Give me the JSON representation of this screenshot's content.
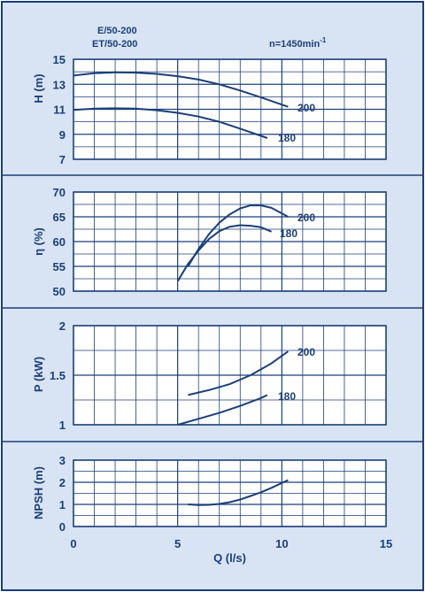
{
  "header": {
    "model_line1": "E/50-200",
    "model_line2": "ET/50-200",
    "speed": "n=1450min",
    "speed_exp": "-1"
  },
  "colors": {
    "background": "#d8e4f3",
    "frame": "#1b3f78",
    "grid": "#1b3f78",
    "curve": "#1b3f78",
    "text": "#1b3f78"
  },
  "chart_data": [
    {
      "type": "line",
      "ylabel": "H (m)",
      "xlim": [
        0,
        15
      ],
      "ylim": [
        7,
        15
      ],
      "yticks": [
        "7",
        "9",
        "11",
        "13",
        "15"
      ],
      "series": [
        {
          "name": "200",
          "x": [
            0,
            1,
            2,
            3,
            4,
            5,
            6,
            7,
            8,
            9,
            10.3
          ],
          "y": [
            13.7,
            13.88,
            13.95,
            13.93,
            13.83,
            13.65,
            13.38,
            13.0,
            12.5,
            11.95,
            11.2
          ]
        },
        {
          "name": "180",
          "x": [
            0,
            1,
            2,
            3,
            4,
            5,
            6,
            7,
            8,
            9.3
          ],
          "y": [
            10.95,
            11.05,
            11.08,
            11.05,
            10.92,
            10.72,
            10.42,
            10.0,
            9.45,
            8.7
          ]
        }
      ]
    },
    {
      "type": "line",
      "ylabel": "η (%)",
      "xlim": [
        0,
        15
      ],
      "ylim": [
        50,
        70
      ],
      "yticks": [
        "50",
        "55",
        "60",
        "65",
        "70"
      ],
      "series": [
        {
          "name": "200",
          "x": [
            5.5,
            6,
            6.5,
            7,
            7.5,
            8,
            8.5,
            9,
            9.5,
            10.3
          ],
          "y": [
            55.0,
            58.5,
            61.5,
            63.8,
            65.5,
            66.7,
            67.3,
            67.3,
            66.8,
            65.0
          ]
        },
        {
          "name": "180",
          "x": [
            5,
            5.5,
            6,
            6.5,
            7,
            7.5,
            8,
            8.5,
            9,
            9.5
          ],
          "y": [
            52.0,
            55.5,
            58.2,
            60.5,
            62.1,
            63.0,
            63.3,
            63.2,
            62.9,
            62.0
          ]
        }
      ]
    },
    {
      "type": "line",
      "ylabel": "P (kW)",
      "xlim": [
        0,
        15
      ],
      "ylim": [
        1,
        2
      ],
      "yticks": [
        "1",
        "1.5",
        "2"
      ],
      "series": [
        {
          "name": "200",
          "x": [
            5.5,
            6.5,
            7.5,
            8.5,
            9.5,
            10.3
          ],
          "y": [
            1.3,
            1.35,
            1.41,
            1.5,
            1.62,
            1.74
          ]
        },
        {
          "name": "180",
          "x": [
            5,
            6,
            7,
            8,
            9,
            9.3
          ],
          "y": [
            1.0,
            1.06,
            1.12,
            1.19,
            1.27,
            1.3
          ]
        }
      ]
    },
    {
      "type": "line",
      "ylabel": "NPSH (m)",
      "xlabel": "Q (l/s)",
      "xlim": [
        0,
        15
      ],
      "ylim": [
        0,
        3
      ],
      "yticks": [
        "0",
        "1",
        "2",
        "3"
      ],
      "xticks": [
        "0",
        "5",
        "10",
        "15"
      ],
      "series": [
        {
          "x": [
            5.5,
            6,
            6.5,
            7,
            7.5,
            8,
            8.5,
            9,
            9.5,
            10.3
          ],
          "y": [
            1.0,
            0.97,
            0.98,
            1.02,
            1.1,
            1.22,
            1.38,
            1.55,
            1.75,
            2.1
          ]
        }
      ]
    }
  ]
}
